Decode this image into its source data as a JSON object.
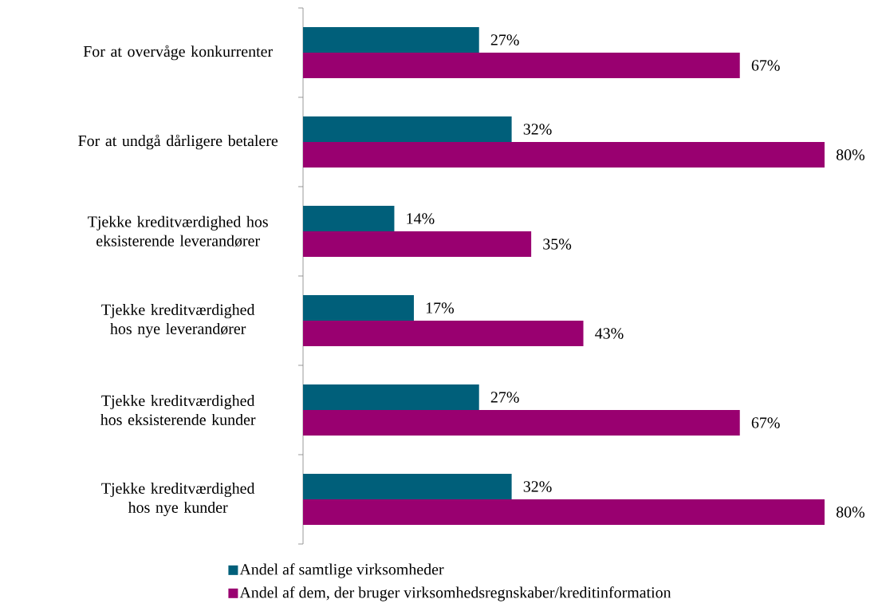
{
  "chart_data": {
    "type": "bar",
    "orientation": "horizontal",
    "legend": "bottom",
    "categories": [
      "For at overvåge konkurrenter",
      "For at undgå dårligere betalere",
      "Tjekke kreditværdighed hos eksisterende leverandører",
      "Tjekke kreditværdighed hos nye leverandører",
      "Tjekke kreditværdighed hos eksisterende kunder",
      "Tjekke kreditværdighed hos nye kunder"
    ],
    "series": [
      {
        "name": "Andel af samtlige virksomheder",
        "color": "#005f7a",
        "values": [
          27,
          32,
          14,
          17,
          27,
          32
        ],
        "value_labels": [
          "27%",
          "32%",
          "14%",
          "17%",
          "27%",
          "32%"
        ]
      },
      {
        "name": "Andel af dem, der bruger virksomhedsregnskaber/kreditinformation",
        "color": "#990070",
        "values": [
          67,
          80,
          35,
          43,
          67,
          80
        ],
        "value_labels": [
          "67%",
          "80%",
          "35%",
          "43%",
          "67%",
          "80%"
        ]
      }
    ]
  }
}
